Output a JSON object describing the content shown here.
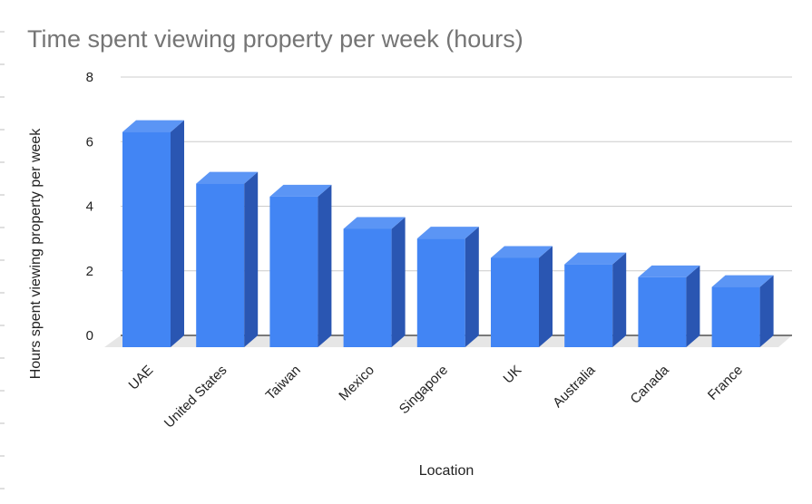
{
  "chart_data": {
    "type": "bar",
    "title": "Time spent viewing property per week (hours)",
    "xlabel": "Location",
    "ylabel": "Hours spent viewing property per week",
    "categories": [
      "UAE",
      "United States",
      "Taiwan",
      "Mexico",
      "Singapore",
      "UK",
      "Australia",
      "Canada",
      "France"
    ],
    "values": [
      6.3,
      4.7,
      4.3,
      3.3,
      3.0,
      2.4,
      2.2,
      1.8,
      1.5
    ],
    "ylim": [
      0,
      8
    ],
    "yticks": [
      "0",
      "2",
      "4",
      "6",
      "8"
    ],
    "grid": true,
    "legend": "none",
    "colors": {
      "bar_front": "#4285f4",
      "bar_side": "#2a56b2",
      "bar_top": "#5b95f5",
      "floor": "#e6e6e6"
    }
  }
}
